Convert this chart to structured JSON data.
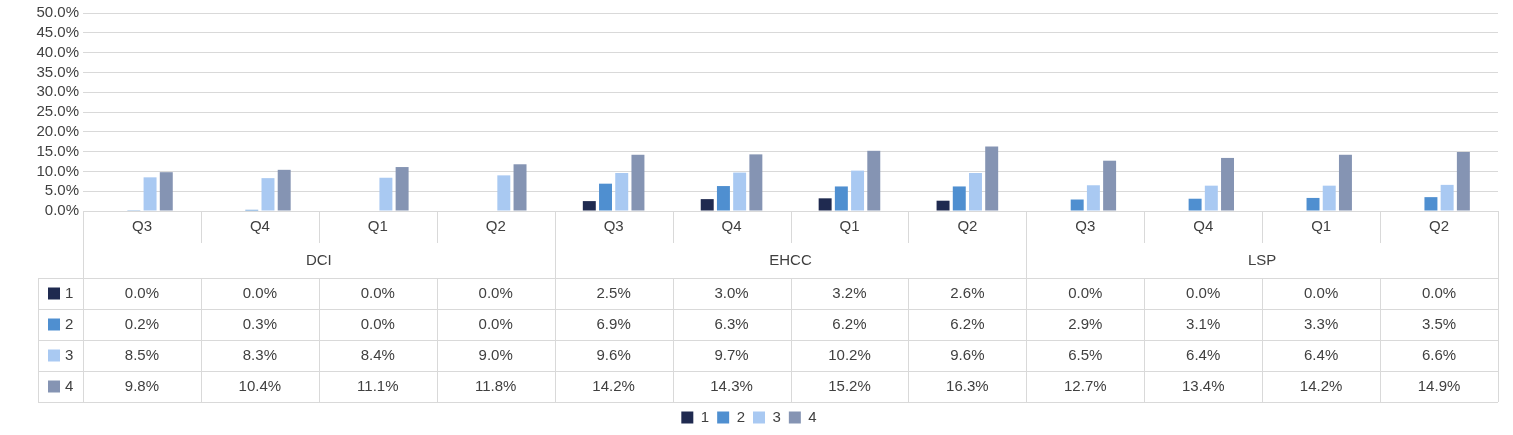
{
  "chart_data": {
    "type": "bar",
    "categories": [
      "Q3",
      "Q4",
      "Q1",
      "Q2",
      "Q3",
      "Q4",
      "Q1",
      "Q2",
      "Q3",
      "Q4",
      "Q1",
      "Q2"
    ],
    "annotations": [
      "DCI",
      "EHCC",
      "LSP"
    ],
    "series": [
      {
        "name": "1",
        "color": "#1f2a50",
        "values": [
          0,
          0,
          0,
          0,
          2.5,
          3.0,
          3.2,
          2.6,
          0,
          0,
          0,
          0
        ],
        "value_labels": [
          "0.0%",
          "0.0%",
          "0.0%",
          "0.0%",
          "2.5%",
          "3.0%",
          "3.2%",
          "2.6%",
          "0.0%",
          "0.0%",
          "0.0%",
          "0.0%"
        ]
      },
      {
        "name": "2",
        "color": "#4f8fd0",
        "values": [
          0.2,
          0.3,
          0,
          0,
          6.9,
          6.3,
          6.2,
          6.2,
          2.9,
          3.1,
          3.3,
          3.5
        ],
        "value_labels": [
          "0.2%",
          "0.3%",
          "0.0%",
          "0.0%",
          "6.9%",
          "6.3%",
          "6.2%",
          "6.2%",
          "2.9%",
          "3.1%",
          "3.3%",
          "3.5%"
        ]
      },
      {
        "name": "3",
        "color": "#a9c9f2",
        "values": [
          8.5,
          8.3,
          8.4,
          9.0,
          9.6,
          9.7,
          10.2,
          9.6,
          6.5,
          6.4,
          6.4,
          6.6
        ],
        "value_labels": [
          "8.5%",
          "8.3%",
          "8.4%",
          "9.0%",
          "9.6%",
          "9.7%",
          "10.2%",
          "9.6%",
          "6.5%",
          "6.4%",
          "6.4%",
          "6.6%"
        ]
      },
      {
        "name": "4",
        "color": "#8594b3",
        "values": [
          9.8,
          10.4,
          11.1,
          11.8,
          14.2,
          14.3,
          15.2,
          16.3,
          12.7,
          13.4,
          14.2,
          14.9
        ],
        "value_labels": [
          "9.8%",
          "10.4%",
          "11.1%",
          "11.8%",
          "14.2%",
          "14.3%",
          "15.2%",
          "16.3%",
          "12.7%",
          "13.4%",
          "14.2%",
          "14.9%"
        ]
      }
    ],
    "ylim": [
      0,
      50
    ],
    "yticks": [
      {
        "value": 0,
        "label": "0.0%"
      },
      {
        "value": 5,
        "label": "5.0%"
      },
      {
        "value": 10,
        "label": "10.0%"
      },
      {
        "value": 15,
        "label": "15.0%"
      },
      {
        "value": 20,
        "label": "20.0%"
      },
      {
        "value": 25,
        "label": "25.0%"
      },
      {
        "value": 30,
        "label": "30.0%"
      },
      {
        "value": 35,
        "label": "35.0%"
      },
      {
        "value": 40,
        "label": "40.0%"
      },
      {
        "value": 45,
        "label": "45.0%"
      },
      {
        "value": 50,
        "label": "50.0%"
      }
    ],
    "grid": "y",
    "legend": "bottom"
  }
}
